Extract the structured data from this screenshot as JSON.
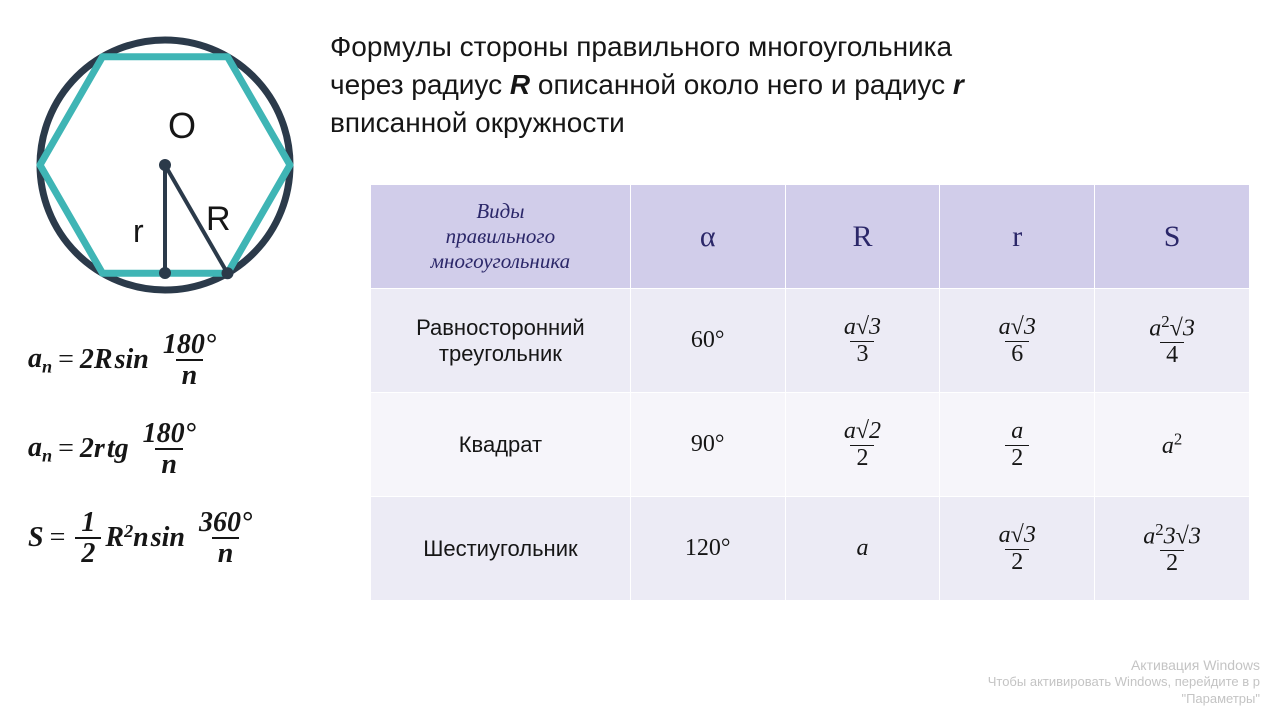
{
  "title": {
    "line1": "Формулы стороны правильного многоугольника",
    "line2_a": "через радиус ",
    "line2_R": "R",
    "line2_b": " описанной около него и радиус ",
    "line2_r": "r",
    "line3": "вписанной окружности"
  },
  "diagram": {
    "center_label": "O",
    "r_label": "r",
    "R_label": "R",
    "circle_color": "#2b3a4a",
    "hexagon_color": "#3fb5b5",
    "stroke_width": 7
  },
  "formulas": {
    "f1": {
      "lhs_a": "a",
      "lhs_sub": "n",
      "coef": "2R",
      "func": "sin",
      "num": "180°",
      "den": "n"
    },
    "f2": {
      "lhs_a": "a",
      "lhs_sub": "n",
      "coef": "2r",
      "func": "tg",
      "num": "180°",
      "den": "n"
    },
    "f3": {
      "lhs": "S",
      "half_num": "1",
      "half_den": "2",
      "Rsq": "R",
      "Rsup": "2",
      "nvar": "n",
      "func": "sin",
      "num": "360°",
      "den": "n"
    }
  },
  "table": {
    "header": {
      "c0_l1": "Виды",
      "c0_l2": "правильного",
      "c0_l3": "многоугольника",
      "c1": "α",
      "c2": "R",
      "c3": "r",
      "c4": "S"
    },
    "columns_width": {
      "c0": 260,
      "cN": 155
    },
    "colors": {
      "header_bg": "#d1cdea",
      "row_a": "#ecebf5",
      "row_b": "#f6f5fa",
      "header_fg": "#2b2769"
    },
    "rows": [
      {
        "name_l1": "Равносторонний",
        "name_l2": "треугольник",
        "alpha": "60°",
        "R": {
          "type": "frac",
          "num": "a√3",
          "den": "3"
        },
        "r": {
          "type": "frac",
          "num": "a√3",
          "den": "6"
        },
        "S": {
          "type": "frac",
          "num_a": "a",
          "num_sup": "2",
          "num_b": "√3",
          "den": "4"
        }
      },
      {
        "name_l1": "Квадрат",
        "name_l2": "",
        "alpha": "90°",
        "R": {
          "type": "frac",
          "num": "a√2",
          "den": "2"
        },
        "r": {
          "type": "frac",
          "num": "a",
          "den": "2"
        },
        "S": {
          "type": "plain",
          "a": "a",
          "sup": "2"
        }
      },
      {
        "name_l1": "Шестиугольник",
        "name_l2": "",
        "alpha": "120°",
        "R": {
          "type": "plain",
          "text": "a"
        },
        "r": {
          "type": "frac",
          "num": "a√3",
          "den": "2"
        },
        "S": {
          "type": "frac",
          "num_a": "a",
          "num_sup": "2",
          "num_b": "3√3",
          "den": "2"
        }
      }
    ]
  },
  "watermark": {
    "line1": "Активация Windows",
    "line2": "Чтобы активировать Windows, перейдите в р",
    "line3": "\"Параметры\""
  }
}
